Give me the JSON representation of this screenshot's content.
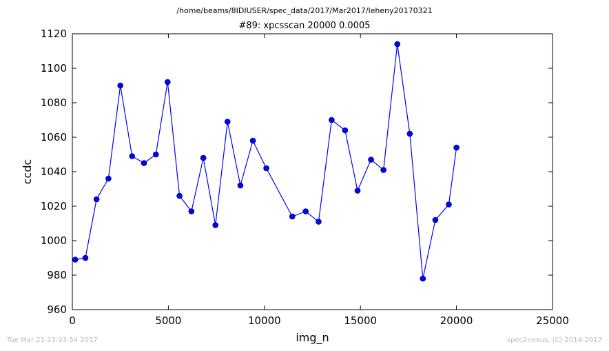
{
  "figure": {
    "path": "/home/beams/8IDIUSER/spec_data/2017/Mar2017/leheny20170321",
    "footer_left": "Tue Mar 21 21:03:54 2017",
    "footer_right": "spec2nexus, (C) 2014-2017"
  },
  "colors": {
    "line": "#0000ff",
    "marker": "#0000ff",
    "background": "#ffffff"
  },
  "chart_data": {
    "type": "line",
    "title": "#89: xpcsscan 20000 0.0005",
    "xlabel": "img_n",
    "ylabel": "ccdc",
    "xlim": [
      0,
      25000
    ],
    "ylim": [
      960,
      1120
    ],
    "xticks": [
      0,
      5000,
      10000,
      15000,
      20000,
      25000
    ],
    "yticks": [
      960,
      980,
      1000,
      1020,
      1040,
      1060,
      1080,
      1100,
      1120
    ],
    "xtick_labels": [
      "0",
      "5000",
      "10000",
      "15000",
      "20000",
      "25000"
    ],
    "ytick_labels": [
      "960",
      "980",
      "1000",
      "1020",
      "1040",
      "1060",
      "1080",
      "1100",
      "1120"
    ],
    "grid": false,
    "legend": "none",
    "series": [
      {
        "marker": "circle",
        "x": [
          150,
          680,
          1260,
          1880,
          2500,
          3110,
          3730,
          4350,
          4960,
          5580,
          6200,
          6820,
          7450,
          8080,
          8750,
          9400,
          10100,
          11450,
          12150,
          12820,
          13500,
          14200,
          14850,
          15550,
          16200,
          16920,
          17570,
          18250,
          18900,
          19600,
          20000
        ],
        "y": [
          989,
          990,
          1024,
          1036,
          1090,
          1049,
          1045,
          1050,
          1092,
          1026,
          1017,
          1048,
          1009,
          1069,
          1032,
          1058,
          1042,
          1014,
          1017,
          1011,
          1070,
          1064,
          1029,
          1047,
          1041,
          1114,
          1062,
          978,
          1012,
          1021,
          1054
        ]
      }
    ]
  }
}
